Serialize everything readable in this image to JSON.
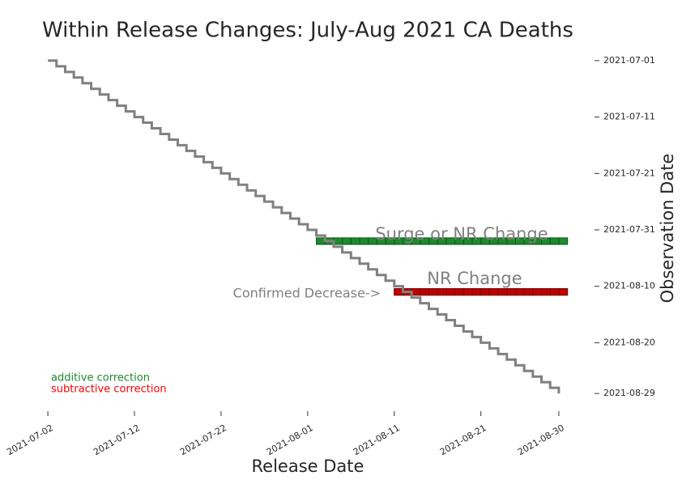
{
  "chart_data": {
    "type": "step",
    "title": "Within Release Changes: July-Aug 2021 CA Deaths",
    "x_label": "Release Date",
    "y_label": "Observation Date",
    "color": "#808080",
    "x": [
      "2021-07-02",
      "2021-07-03",
      "2021-07-04",
      "2021-07-05",
      "2021-07-06",
      "2021-07-07",
      "2021-07-08",
      "2021-07-09",
      "2021-07-10",
      "2021-07-11",
      "2021-07-12",
      "2021-07-13",
      "2021-07-14",
      "2021-07-15",
      "2021-07-16",
      "2021-07-17",
      "2021-07-18",
      "2021-07-19",
      "2021-07-20",
      "2021-07-21",
      "2021-07-22",
      "2021-07-23",
      "2021-07-24",
      "2021-07-25",
      "2021-07-26",
      "2021-07-27",
      "2021-07-28",
      "2021-07-29",
      "2021-07-30",
      "2021-07-31",
      "2021-08-01",
      "2021-08-02",
      "2021-08-03",
      "2021-08-04",
      "2021-08-05",
      "2021-08-06",
      "2021-08-07",
      "2021-08-08",
      "2021-08-09",
      "2021-08-10",
      "2021-08-11",
      "2021-08-12",
      "2021-08-13",
      "2021-08-14",
      "2021-08-15",
      "2021-08-16",
      "2021-08-17",
      "2021-08-18",
      "2021-08-19",
      "2021-08-20",
      "2021-08-21",
      "2021-08-22",
      "2021-08-23",
      "2021-08-24",
      "2021-08-25",
      "2021-08-26",
      "2021-08-27",
      "2021-08-28",
      "2021-08-29",
      "2021-08-30"
    ],
    "values": [
      "2021-07-01",
      "2021-07-02",
      "2021-07-03",
      "2021-07-04",
      "2021-07-05",
      "2021-07-06",
      "2021-07-07",
      "2021-07-08",
      "2021-07-09",
      "2021-07-10",
      "2021-07-11",
      "2021-07-12",
      "2021-07-13",
      "2021-07-14",
      "2021-07-15",
      "2021-07-16",
      "2021-07-17",
      "2021-07-18",
      "2021-07-19",
      "2021-07-20",
      "2021-07-21",
      "2021-07-22",
      "2021-07-23",
      "2021-07-24",
      "2021-07-25",
      "2021-07-26",
      "2021-07-27",
      "2021-07-28",
      "2021-07-29",
      "2021-07-30",
      "2021-07-31",
      "2021-08-01",
      "2021-08-02",
      "2021-08-03",
      "2021-08-04",
      "2021-08-05",
      "2021-08-06",
      "2021-08-07",
      "2021-08-08",
      "2021-08-09",
      "2021-08-10",
      "2021-08-11",
      "2021-08-12",
      "2021-08-13",
      "2021-08-14",
      "2021-08-15",
      "2021-08-16",
      "2021-08-17",
      "2021-08-18",
      "2021-08-19",
      "2021-08-20",
      "2021-08-21",
      "2021-08-22",
      "2021-08-23",
      "2021-08-24",
      "2021-08-25",
      "2021-08-26",
      "2021-08-27",
      "2021-08-28",
      "2021-08-29"
    ],
    "series": [
      {
        "name": "additive correction",
        "color": "#1e8a2e",
        "edge": "#0d5c1a",
        "x": [
          "2021-08-02",
          "2021-08-31"
        ],
        "values": [
          "2021-08-02",
          "2021-08-02"
        ]
      },
      {
        "name": "subtractive correction",
        "color": "#c00000",
        "edge": "#7a0000",
        "legend_color": "#ff0000",
        "x": [
          "2021-08-11",
          "2021-08-31"
        ],
        "values": [
          "2021-08-11",
          "2021-08-11"
        ]
      }
    ],
    "annotations": [
      "Surge or NR Change",
      "NR Change",
      "Confirmed Decrease->"
    ],
    "xlim": [
      "2021-06-29",
      "2021-09-02"
    ],
    "ylim": [
      "2021-06-27",
      "2021-09-02"
    ],
    "xticks": [
      "2021-07-02",
      "2021-07-12",
      "2021-07-22",
      "2021-08-01",
      "2021-08-11",
      "2021-08-21",
      "2021-08-30"
    ],
    "yticks": [
      "2021-07-01",
      "2021-07-11",
      "2021-07-21",
      "2021-07-31",
      "2021-08-10",
      "2021-08-20",
      "2021-08-29"
    ]
  }
}
